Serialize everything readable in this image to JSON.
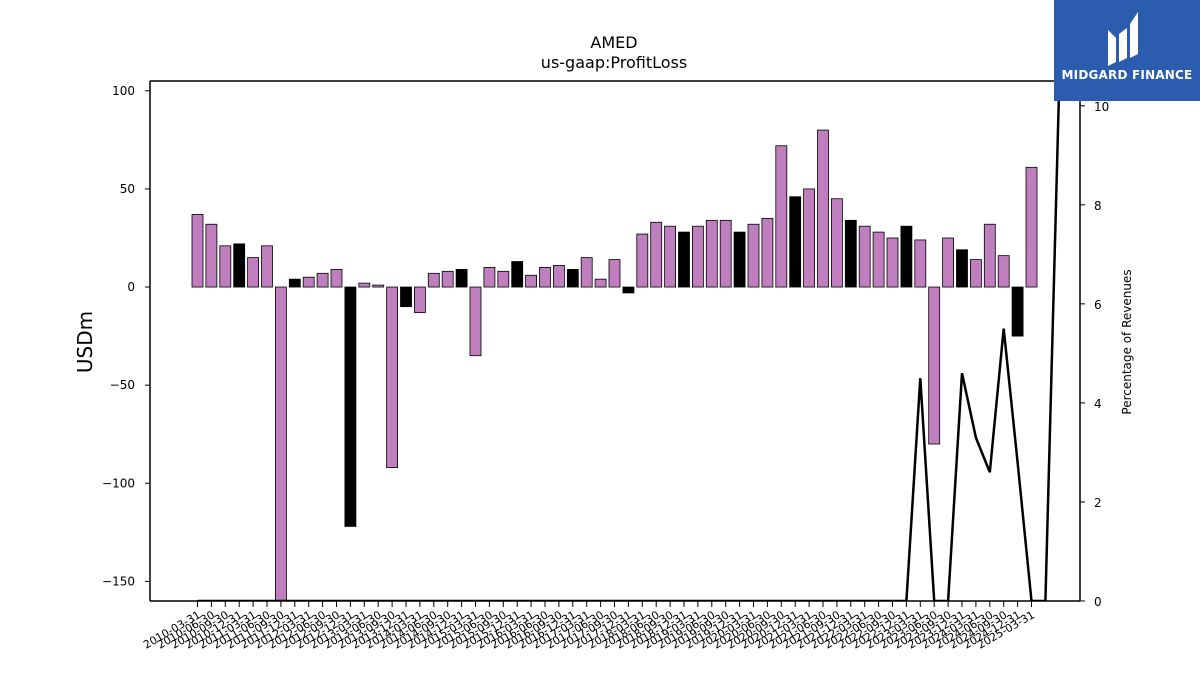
{
  "chart_data": {
    "type": "bar",
    "title": "AMED",
    "subtitle": "us-gaap:ProfitLoss",
    "ylabel": "USDm",
    "y2label": "Percentage of Revenues",
    "ylim": [
      -160,
      105
    ],
    "y2lim": [
      0,
      10.5
    ],
    "yticks": [
      100,
      50,
      0,
      -50,
      -100,
      -150
    ],
    "y2ticks": [
      0,
      2,
      4,
      6,
      8,
      10
    ],
    "categories": [
      "2010-03-31",
      "2010-06-30",
      "2010-09-30",
      "2010-12-31",
      "2011-03-31",
      "2011-06-30",
      "2011-09-30",
      "2011-12-31",
      "2012-03-31",
      "2012-06-30",
      "2012-09-30",
      "2012-12-31",
      "2013-03-31",
      "2013-06-30",
      "2013-09-30",
      "2013-12-31",
      "2014-03-31",
      "2014-06-30",
      "2014-09-30",
      "2014-12-31",
      "2015-03-31",
      "2015-06-30",
      "2015-09-30",
      "2015-12-31",
      "2016-03-31",
      "2016-06-30",
      "2016-09-30",
      "2016-12-31",
      "2017-03-31",
      "2017-06-30",
      "2017-09-30",
      "2017-12-31",
      "2018-03-31",
      "2018-06-30",
      "2018-09-30",
      "2018-12-31",
      "2019-03-31",
      "2019-06-30",
      "2019-09-30",
      "2019-12-31",
      "2020-03-31",
      "2020-06-30",
      "2020-09-30",
      "2020-12-31",
      "2021-03-31",
      "2021-06-30",
      "2021-09-30",
      "2021-12-31",
      "2022-03-31",
      "2022-06-30",
      "2022-09-30",
      "2022-12-31",
      "2023-03-31",
      "2023-06-30",
      "2023-09-30",
      "2023-12-31",
      "2024-03-31",
      "2024-06-30",
      "2024-09-30",
      "2024-12-31",
      "2025-03-31"
    ],
    "values": [
      37,
      32,
      21,
      22,
      15,
      21,
      -160,
      4,
      5,
      7,
      9,
      -122,
      2,
      1,
      -92,
      -10,
      -13,
      7,
      8,
      9,
      -35,
      10,
      8,
      13,
      6,
      10,
      11,
      9,
      15,
      4,
      14,
      -3,
      27,
      33,
      31,
      28,
      31,
      34,
      34,
      28,
      32,
      35,
      72,
      46,
      50,
      80,
      45,
      34,
      31,
      28,
      25,
      31,
      24,
      -80,
      25,
      19,
      14,
      32,
      16,
      -25,
      61
    ],
    "bar_kind": [
      "q",
      "q",
      "q",
      "y",
      "q",
      "q",
      "q",
      "y",
      "q",
      "q",
      "q",
      "y",
      "q",
      "q",
      "q",
      "y",
      "q",
      "q",
      "q",
      "y",
      "q",
      "q",
      "q",
      "y",
      "q",
      "q",
      "q",
      "y",
      "q",
      "q",
      "q",
      "y",
      "q",
      "q",
      "q",
      "y",
      "q",
      "q",
      "q",
      "y",
      "q",
      "q",
      "q",
      "y",
      "q",
      "q",
      "q",
      "y",
      "q",
      "q",
      "q",
      "y",
      "q",
      "q",
      "q",
      "y",
      "q",
      "q",
      "q",
      "y",
      "q"
    ],
    "bar_colors": {
      "q": "#bf7fbf",
      "y": "#000000"
    },
    "line_series": {
      "color": "#000000",
      "points": [
        [
          0,
          0
        ],
        [
          51,
          0
        ],
        [
          52,
          4.5
        ],
        [
          53,
          0
        ],
        [
          54,
          0
        ],
        [
          55,
          4.6
        ],
        [
          56,
          3.3
        ],
        [
          57,
          2.6
        ],
        [
          58,
          5.5
        ],
        [
          59,
          2.8
        ],
        [
          60,
          0
        ],
        [
          61,
          0
        ],
        [
          62,
          10.5
        ]
      ]
    }
  },
  "logo": {
    "name": "MIDGARD FINANCE",
    "bg": "#2b5cad"
  }
}
